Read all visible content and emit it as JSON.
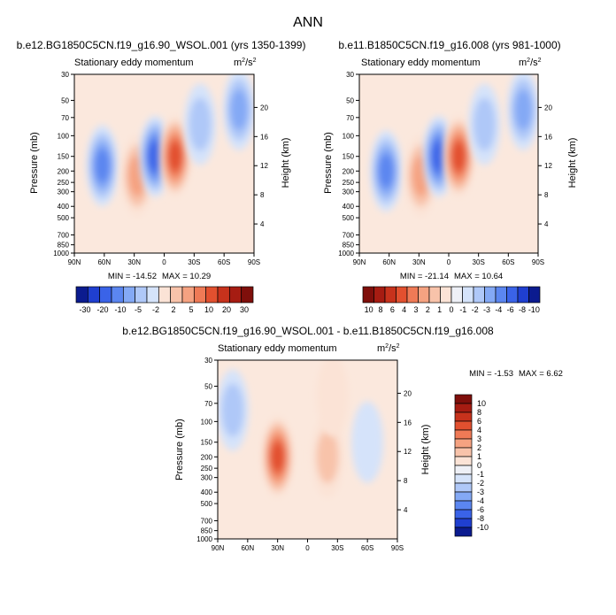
{
  "figure_title": "ANN",
  "chart_data": [
    {
      "type": "contour",
      "title": "b.e12.BG1850C5CN.f19_g16.90_WSOL.001 (yrs 1350-1399)",
      "subtitle": "Stationary eddy momentum",
      "units": "m²/s²",
      "units_base": "m",
      "units_sup": "2",
      "units_tail": "/s",
      "units_sup2": "2",
      "xlabel": "",
      "ylabel": "Pressure (mb)",
      "right_label": "Height (km)",
      "x_ticks": [
        "90N",
        "60N",
        "30N",
        "0",
        "30S",
        "60S",
        "90S"
      ],
      "x_range": [
        90,
        -90
      ],
      "y_ticks": [
        "30",
        "50",
        "70",
        "100",
        "150",
        "200",
        "250",
        "300",
        "400",
        "500",
        "700",
        "850",
        "1000"
      ],
      "y_tick_values": [
        30,
        50,
        70,
        100,
        150,
        200,
        250,
        300,
        400,
        500,
        700,
        850,
        1000
      ],
      "y_range": [
        30,
        1000
      ],
      "height_ticks": [
        "20",
        "16",
        "12",
        "8",
        "4"
      ],
      "height_tick_values": [
        20,
        16,
        12,
        8,
        4
      ],
      "min_label": "MIN = -14.52",
      "max_label": "MAX = 10.29",
      "features": [
        {
          "lat": 62,
          "p": 180,
          "value": -8
        },
        {
          "lat": 27,
          "p": 220,
          "value": 6
        },
        {
          "lat": 9,
          "p": 150,
          "value": -10
        },
        {
          "lat": -11,
          "p": 150,
          "value": 10
        },
        {
          "lat": -36,
          "p": 80,
          "value": -3
        },
        {
          "lat": -75,
          "p": 60,
          "value": -6
        }
      ]
    },
    {
      "type": "contour",
      "title": "b.e11.B1850C5CN.f19_g16.008 (yrs 981-1000)",
      "subtitle": "Stationary eddy momentum",
      "units": "m²/s²",
      "units_base": "m",
      "units_sup": "2",
      "units_tail": "/s",
      "units_sup2": "2",
      "xlabel": "",
      "ylabel": "Pressure (mb)",
      "right_label": "Height (km)",
      "x_ticks": [
        "90N",
        "60N",
        "30N",
        "0",
        "30S",
        "60S",
        "90S"
      ],
      "x_range": [
        90,
        -90
      ],
      "y_ticks": [
        "30",
        "50",
        "70",
        "100",
        "150",
        "200",
        "250",
        "300",
        "400",
        "500",
        "700",
        "850",
        "1000"
      ],
      "y_tick_values": [
        30,
        50,
        70,
        100,
        150,
        200,
        250,
        300,
        400,
        500,
        700,
        850,
        1000
      ],
      "y_range": [
        30,
        1000
      ],
      "height_ticks": [
        "20",
        "16",
        "12",
        "8",
        "4"
      ],
      "height_tick_values": [
        20,
        16,
        12,
        8,
        4
      ],
      "min_label": "MIN = -21.14",
      "max_label": "MAX = 10.64",
      "features": [
        {
          "lat": 63,
          "p": 200,
          "value": -8
        },
        {
          "lat": 28,
          "p": 220,
          "value": 5
        },
        {
          "lat": 10,
          "p": 150,
          "value": -10
        },
        {
          "lat": -10,
          "p": 150,
          "value": 10
        },
        {
          "lat": -36,
          "p": 80,
          "value": -3
        },
        {
          "lat": -75,
          "p": 60,
          "value": -6
        }
      ]
    },
    {
      "type": "contour",
      "title": "b.e12.BG1850C5CN.f19_g16.90_WSOL.001 - b.e11.B1850C5CN.f19_g16.008",
      "subtitle": "Stationary eddy momentum",
      "units": "m²/s²",
      "units_base": "m",
      "units_sup": "2",
      "units_tail": "/s",
      "units_sup2": "2",
      "xlabel": "",
      "ylabel": "Pressure (mb)",
      "right_label": "Height (km)",
      "x_ticks": [
        "90N",
        "60N",
        "30N",
        "0",
        "30S",
        "60S",
        "90S"
      ],
      "x_range": [
        90,
        -90
      ],
      "y_ticks": [
        "30",
        "50",
        "70",
        "100",
        "150",
        "200",
        "250",
        "300",
        "400",
        "500",
        "700",
        "850",
        "1000"
      ],
      "y_tick_values": [
        30,
        50,
        70,
        100,
        150,
        200,
        250,
        300,
        400,
        500,
        700,
        850,
        1000
      ],
      "y_range": [
        30,
        1000
      ],
      "height_ticks": [
        "20",
        "16",
        "12",
        "8",
        "4"
      ],
      "height_tick_values": [
        20,
        16,
        12,
        8,
        4
      ],
      "min_label": "MIN = -1.53",
      "max_label": "MAX =  6.62",
      "features": [
        {
          "lat": 30,
          "p": 200,
          "value": 4.5
        },
        {
          "lat": -20,
          "p": 200,
          "value": 1.5
        },
        {
          "lat": 75,
          "p": 80,
          "value": -1
        },
        {
          "lat": -60,
          "p": 150,
          "value": -0.5
        },
        {
          "lat": -25,
          "p": 60,
          "value": 0.5
        }
      ]
    }
  ],
  "colorbars": [
    {
      "orientation": "horizontal",
      "labels": [
        "-30",
        "-20",
        "-10",
        "-5",
        "-2",
        "2",
        "5",
        "10",
        "20",
        "30"
      ],
      "colors": [
        "#0b1b8f",
        "#1f3fd0",
        "#3a63e8",
        "#5b86f0",
        "#84a9f5",
        "#afc8f8",
        "#d5e3fa",
        "#fbe3d6",
        "#f8c3aa",
        "#f5a281",
        "#ef7a56",
        "#e2502f",
        "#c7321c",
        "#a61c12",
        "#7f0f0b"
      ]
    },
    {
      "orientation": "vertical",
      "labels": [
        "10",
        "8",
        "6",
        "4",
        "3",
        "2",
        "1",
        "0",
        "-1",
        "-2",
        "-3",
        "-4",
        "-6",
        "-8",
        "-10"
      ],
      "colors": [
        "#7f0f0b",
        "#a61c12",
        "#c7321c",
        "#e2502f",
        "#ef7a56",
        "#f5a281",
        "#f8c3aa",
        "#fbe3d6",
        "#eef0f6",
        "#d5e3fa",
        "#afc8f8",
        "#84a9f5",
        "#5b86f0",
        "#3a63e8",
        "#1f3fd0",
        "#0b1b8f"
      ]
    }
  ]
}
